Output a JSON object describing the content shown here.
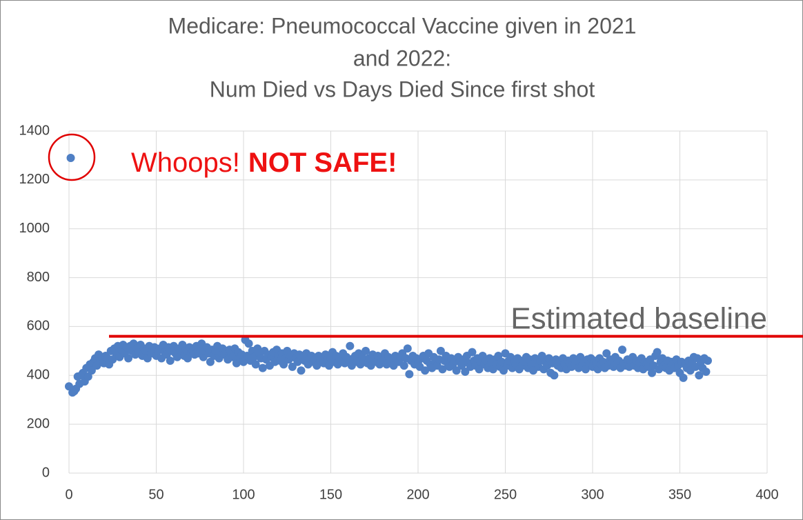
{
  "chart_data": {
    "type": "scatter",
    "title": [
      "Medicare: Pneumococcal Vaccine given in 2021",
      "and 2022:",
      "Num Died vs Days Died Since first shot"
    ],
    "annotation": {
      "text": "Whoops!",
      "emphasis": "NOT SAFE!",
      "color": "#ee1111"
    },
    "baseline": {
      "label": "Estimated baseline",
      "value": 560,
      "color": "#e00000"
    },
    "color": "#4f7fc4",
    "xlim": [
      0,
      400
    ],
    "xticks": [
      0,
      50,
      100,
      150,
      200,
      250,
      300,
      350,
      400
    ],
    "ylim": [
      0,
      1400
    ],
    "yticks": [
      0,
      200,
      400,
      600,
      800,
      1000,
      1200,
      1400
    ],
    "grid": true,
    "x": [
      0,
      1,
      2,
      3,
      4,
      5,
      6,
      7,
      8,
      9,
      10,
      11,
      12,
      13,
      14,
      15,
      16,
      17,
      18,
      19,
      20,
      21,
      22,
      23,
      24,
      25,
      26,
      27,
      28,
      29,
      30,
      31,
      32,
      33,
      34,
      35,
      36,
      37,
      38,
      39,
      40,
      41,
      42,
      43,
      44,
      45,
      46,
      47,
      48,
      49,
      50,
      51,
      52,
      53,
      54,
      55,
      56,
      57,
      58,
      59,
      60,
      61,
      62,
      63,
      64,
      65,
      66,
      67,
      68,
      69,
      70,
      71,
      72,
      73,
      74,
      75,
      76,
      77,
      78,
      79,
      80,
      81,
      82,
      83,
      84,
      85,
      86,
      87,
      88,
      89,
      90,
      91,
      92,
      93,
      94,
      95,
      96,
      97,
      98,
      99,
      100,
      101,
      102,
      103,
      104,
      105,
      106,
      107,
      108,
      109,
      110,
      111,
      112,
      113,
      114,
      115,
      116,
      117,
      118,
      119,
      120,
      121,
      122,
      123,
      124,
      125,
      126,
      127,
      128,
      129,
      130,
      131,
      132,
      133,
      134,
      135,
      136,
      137,
      138,
      139,
      140,
      141,
      142,
      143,
      144,
      145,
      146,
      147,
      148,
      149,
      150,
      151,
      152,
      153,
      154,
      155,
      156,
      157,
      158,
      159,
      160,
      161,
      162,
      163,
      164,
      165,
      166,
      167,
      168,
      169,
      170,
      171,
      172,
      173,
      174,
      175,
      176,
      177,
      178,
      179,
      180,
      181,
      182,
      183,
      184,
      185,
      186,
      187,
      188,
      189,
      190,
      191,
      192,
      193,
      194,
      195,
      196,
      197,
      198,
      199,
      200,
      201,
      202,
      203,
      204,
      205,
      206,
      207,
      208,
      209,
      210,
      211,
      212,
      213,
      214,
      215,
      216,
      217,
      218,
      219,
      220,
      221,
      222,
      223,
      224,
      225,
      226,
      227,
      228,
      229,
      230,
      231,
      232,
      233,
      234,
      235,
      236,
      237,
      238,
      239,
      240,
      241,
      242,
      243,
      244,
      245,
      246,
      247,
      248,
      249,
      250,
      251,
      252,
      253,
      254,
      255,
      256,
      257,
      258,
      259,
      260,
      261,
      262,
      263,
      264,
      265,
      266,
      267,
      268,
      269,
      270,
      271,
      272,
      273,
      274,
      275,
      276,
      277,
      278,
      279,
      280,
      281,
      282,
      283,
      284,
      285,
      286,
      287,
      288,
      289,
      290,
      291,
      292,
      293,
      294,
      295,
      296,
      297,
      298,
      299,
      300,
      301,
      302,
      303,
      304,
      305,
      306,
      307,
      308,
      309,
      310,
      311,
      312,
      313,
      314,
      315,
      316,
      317,
      318,
      319,
      320,
      321,
      322,
      323,
      324,
      325,
      326,
      327,
      328,
      329,
      330,
      331,
      332,
      333,
      334,
      335,
      336,
      337,
      338,
      339,
      340,
      341,
      342,
      343,
      344,
      345,
      346,
      347,
      348,
      349,
      350,
      351,
      352,
      353,
      354,
      355,
      356,
      357,
      358,
      359,
      360,
      361,
      362,
      363,
      364,
      365,
      366
    ],
    "y": [
      355,
      1290,
      330,
      335,
      345,
      395,
      365,
      400,
      410,
      375,
      430,
      395,
      445,
      420,
      455,
      470,
      440,
      485,
      460,
      475,
      450,
      480,
      470,
      445,
      500,
      465,
      510,
      490,
      520,
      475,
      505,
      525,
      490,
      515,
      470,
      520,
      500,
      530,
      485,
      510,
      495,
      525,
      480,
      510,
      500,
      470,
      520,
      490,
      505,
      515,
      480,
      500,
      510,
      470,
      525,
      495,
      485,
      515,
      460,
      500,
      520,
      490,
      475,
      510,
      500,
      525,
      480,
      505,
      470,
      515,
      495,
      500,
      485,
      520,
      490,
      510,
      530,
      475,
      500,
      515,
      490,
      455,
      505,
      480,
      500,
      520,
      470,
      495,
      510,
      485,
      500,
      465,
      505,
      490,
      475,
      510,
      450,
      495,
      470,
      485,
      455,
      545,
      480,
      530,
      460,
      500,
      475,
      445,
      510,
      490,
      470,
      430,
      500,
      465,
      485,
      440,
      475,
      495,
      455,
      505,
      480,
      460,
      490,
      445,
      470,
      500,
      465,
      480,
      435,
      490,
      470,
      455,
      485,
      420,
      475,
      460,
      490,
      445,
      470,
      480,
      455,
      465,
      440,
      480,
      460,
      475,
      450,
      485,
      465,
      440,
      470,
      495,
      455,
      480,
      445,
      470,
      460,
      490,
      450,
      475,
      465,
      520,
      440,
      470,
      480,
      455,
      490,
      445,
      475,
      460,
      500,
      450,
      470,
      440,
      485,
      465,
      455,
      480,
      445,
      470,
      460,
      490,
      445,
      475,
      455,
      470,
      440,
      480,
      465,
      455,
      475,
      490,
      440,
      470,
      510,
      405,
      460,
      480,
      445,
      470,
      455,
      435,
      470,
      480,
      420,
      460,
      490,
      445,
      430,
      475,
      455,
      440,
      465,
      500,
      425,
      460,
      480,
      450,
      435,
      470,
      445,
      460,
      420,
      475,
      455,
      440,
      465,
      415,
      480,
      450,
      435,
      495,
      460,
      440,
      470,
      425,
      455,
      480,
      445,
      460,
      430,
      470,
      450,
      425,
      465,
      445,
      480,
      435,
      455,
      420,
      490,
      440,
      460,
      475,
      430,
      455,
      445,
      470,
      425,
      460,
      440,
      455,
      475,
      430,
      465,
      445,
      420,
      470,
      450,
      435,
      460,
      480,
      425,
      455,
      440,
      470,
      410,
      450,
      400,
      465,
      440,
      455,
      430,
      470,
      445,
      425,
      460,
      450,
      435,
      470,
      445,
      460,
      430,
      475,
      440,
      455,
      425,
      465,
      445,
      470,
      435,
      460,
      450,
      425,
      470,
      445,
      455,
      430,
      490,
      440,
      465,
      450,
      435,
      475,
      445,
      460,
      430,
      505,
      450,
      440,
      465,
      435,
      455,
      475,
      440,
      460,
      430,
      450,
      470,
      425,
      455,
      445,
      435,
      465,
      410,
      440,
      480,
      495,
      425,
      455,
      470,
      440,
      430,
      460,
      420,
      455,
      445,
      430,
      465,
      440,
      410,
      455,
      390,
      445,
      430,
      460,
      420,
      450,
      475,
      435,
      470,
      400,
      455,
      430,
      470,
      415,
      460
    ]
  }
}
